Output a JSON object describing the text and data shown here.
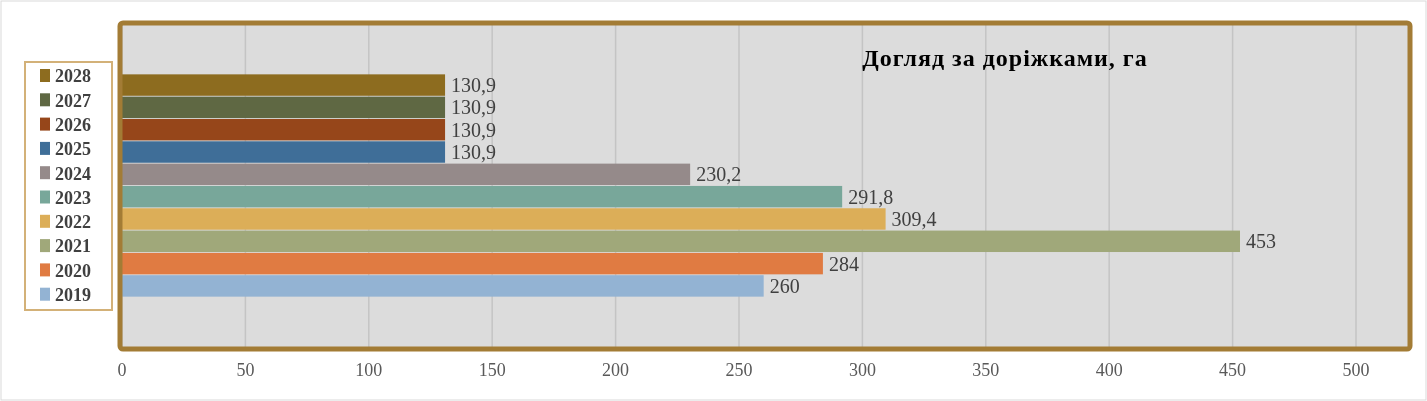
{
  "chart_data": {
    "type": "bar",
    "orientation": "horizontal",
    "title": "Догляд за доріжками, га",
    "categories": [
      null
    ],
    "series": [
      {
        "name": "2019",
        "color": "#93b3d3",
        "values": [
          260
        ],
        "value_labels": [
          "260"
        ]
      },
      {
        "name": "2020",
        "color": "#e07b42",
        "values": [
          284
        ],
        "value_labels": [
          "284"
        ]
      },
      {
        "name": "2021",
        "color": "#a0a87a",
        "values": [
          453
        ],
        "value_labels": [
          "453"
        ]
      },
      {
        "name": "2022",
        "color": "#dcae58",
        "values": [
          309.4
        ],
        "value_labels": [
          "309,4"
        ]
      },
      {
        "name": "2023",
        "color": "#78a79a",
        "values": [
          291.8
        ],
        "value_labels": [
          "291,8"
        ]
      },
      {
        "name": "2024",
        "color": "#958a8a",
        "values": [
          230.2
        ],
        "value_labels": [
          "230,2"
        ]
      },
      {
        "name": "2025",
        "color": "#3f6e98",
        "values": [
          130.9
        ],
        "value_labels": [
          "130,9"
        ]
      },
      {
        "name": "2026",
        "color": "#96461a",
        "values": [
          130.9
        ],
        "value_labels": [
          "130,9"
        ]
      },
      {
        "name": "2027",
        "color": "#5f6843",
        "values": [
          130.9
        ],
        "value_labels": [
          "130,9"
        ]
      },
      {
        "name": "2028",
        "color": "#8d6c1f",
        "values": [
          130.9
        ],
        "value_labels": [
          "130,9"
        ]
      }
    ],
    "xlim": [
      0,
      500
    ],
    "xticks": [
      0,
      50,
      100,
      150,
      200,
      250,
      300,
      350,
      400,
      450,
      500
    ],
    "grid": "x",
    "legend": "left"
  }
}
